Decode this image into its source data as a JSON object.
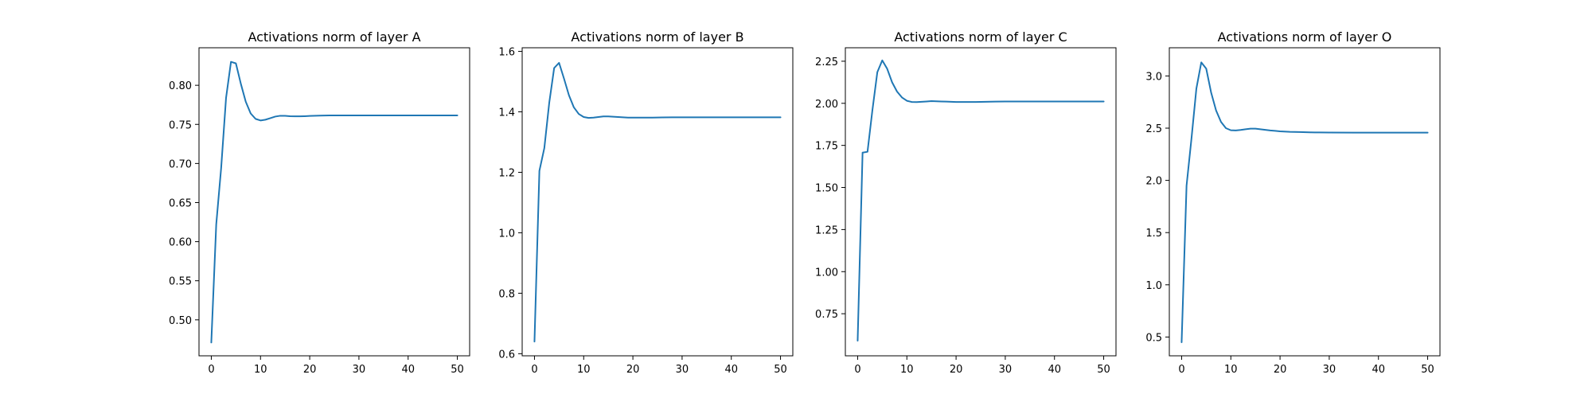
{
  "chart_data": [
    {
      "type": "line",
      "title": "Activations norm of layer A",
      "xlabel": "",
      "ylabel": "",
      "xlim": [
        -2.5,
        52.5
      ],
      "ylim": [
        0.454,
        0.848
      ],
      "xticks": [
        0,
        10,
        20,
        30,
        40,
        50
      ],
      "yticks": [
        0.5,
        0.55,
        0.6,
        0.65,
        0.7,
        0.75,
        0.8
      ],
      "ytick_labels": [
        "0.50",
        "0.55",
        "0.60",
        "0.65",
        "0.70",
        "0.75",
        "0.80"
      ],
      "grid": false,
      "series": [
        {
          "color": "#1f77b4",
          "x": [
            0,
            1,
            2,
            3,
            4,
            5,
            6,
            7,
            8,
            9,
            10,
            11,
            12,
            13,
            14,
            15,
            16,
            17,
            18,
            19,
            20,
            22,
            24,
            26,
            28,
            30,
            35,
            40,
            45,
            50
          ],
          "y": [
            0.471,
            0.622,
            0.694,
            0.784,
            0.83,
            0.828,
            0.802,
            0.779,
            0.764,
            0.757,
            0.755,
            0.756,
            0.758,
            0.76,
            0.761,
            0.761,
            0.7605,
            0.7603,
            0.7603,
            0.7605,
            0.7608,
            0.7612,
            0.7615,
            0.7615,
            0.7615,
            0.7615,
            0.7615,
            0.7615,
            0.7615,
            0.7615
          ]
        }
      ]
    },
    {
      "type": "line",
      "title": "Activations norm of layer B",
      "xlabel": "",
      "ylabel": "",
      "xlim": [
        -2.5,
        52.5
      ],
      "ylim": [
        0.593,
        1.612
      ],
      "xticks": [
        0,
        10,
        20,
        30,
        40,
        50
      ],
      "yticks": [
        0.6,
        0.8,
        1.0,
        1.2,
        1.4,
        1.6
      ],
      "ytick_labels": [
        "0.6",
        "0.8",
        "1.0",
        "1.2",
        "1.4",
        "1.6"
      ],
      "grid": false,
      "series": [
        {
          "color": "#1f77b4",
          "x": [
            0,
            1,
            2,
            3,
            4,
            5,
            6,
            7,
            8,
            9,
            10,
            11,
            12,
            13,
            14,
            15,
            16,
            17,
            18,
            19,
            20,
            22,
            24,
            26,
            28,
            30,
            35,
            40,
            45,
            50
          ],
          "y": [
            0.64,
            1.205,
            1.28,
            1.43,
            1.545,
            1.562,
            1.51,
            1.455,
            1.415,
            1.393,
            1.383,
            1.38,
            1.381,
            1.383,
            1.385,
            1.385,
            1.384,
            1.383,
            1.382,
            1.381,
            1.381,
            1.381,
            1.381,
            1.3815,
            1.382,
            1.382,
            1.382,
            1.382,
            1.382,
            1.382
          ]
        }
      ]
    },
    {
      "type": "line",
      "title": "Activations norm of layer C",
      "xlabel": "",
      "ylabel": "",
      "xlim": [
        -2.5,
        52.5
      ],
      "ylim": [
        0.5,
        2.33
      ],
      "xticks": [
        0,
        10,
        20,
        30,
        40,
        50
      ],
      "yticks": [
        0.75,
        1.0,
        1.25,
        1.5,
        1.75,
        2.0,
        2.25
      ],
      "ytick_labels": [
        "0.75",
        "1.00",
        "1.25",
        "1.50",
        "1.75",
        "2.00",
        "2.25"
      ],
      "grid": false,
      "series": [
        {
          "color": "#1f77b4",
          "x": [
            0,
            1,
            2,
            3,
            4,
            5,
            6,
            7,
            8,
            9,
            10,
            11,
            12,
            13,
            14,
            15,
            16,
            17,
            18,
            19,
            20,
            22,
            24,
            26,
            28,
            30,
            35,
            40,
            45,
            50
          ],
          "y": [
            0.59,
            1.707,
            1.712,
            1.96,
            2.185,
            2.255,
            2.205,
            2.125,
            2.07,
            2.035,
            2.015,
            2.008,
            2.007,
            2.009,
            2.011,
            2.013,
            2.012,
            2.011,
            2.01,
            2.009,
            2.008,
            2.008,
            2.008,
            2.009,
            2.01,
            2.011,
            2.011,
            2.011,
            2.011,
            2.011
          ]
        }
      ]
    },
    {
      "type": "line",
      "title": "Activations norm of layer O",
      "xlabel": "",
      "ylabel": "",
      "xlim": [
        -2.5,
        52.5
      ],
      "ylim": [
        0.32,
        3.27
      ],
      "xticks": [
        0,
        10,
        20,
        30,
        40,
        50
      ],
      "yticks": [
        0.5,
        1.0,
        1.5,
        2.0,
        2.5,
        3.0
      ],
      "ytick_labels": [
        "0.5",
        "1.0",
        "1.5",
        "2.0",
        "2.5",
        "3.0"
      ],
      "grid": false,
      "series": [
        {
          "color": "#1f77b4",
          "x": [
            0,
            1,
            2,
            3,
            4,
            5,
            6,
            7,
            8,
            9,
            10,
            11,
            12,
            13,
            14,
            15,
            16,
            17,
            18,
            19,
            20,
            22,
            24,
            26,
            28,
            30,
            35,
            40,
            45,
            50
          ],
          "y": [
            0.45,
            1.95,
            2.4,
            2.88,
            3.13,
            3.07,
            2.84,
            2.67,
            2.56,
            2.5,
            2.48,
            2.478,
            2.483,
            2.49,
            2.495,
            2.495,
            2.49,
            2.484,
            2.478,
            2.474,
            2.47,
            2.465,
            2.463,
            2.46,
            2.459,
            2.458,
            2.457,
            2.457,
            2.457,
            2.457
          ]
        }
      ]
    }
  ]
}
